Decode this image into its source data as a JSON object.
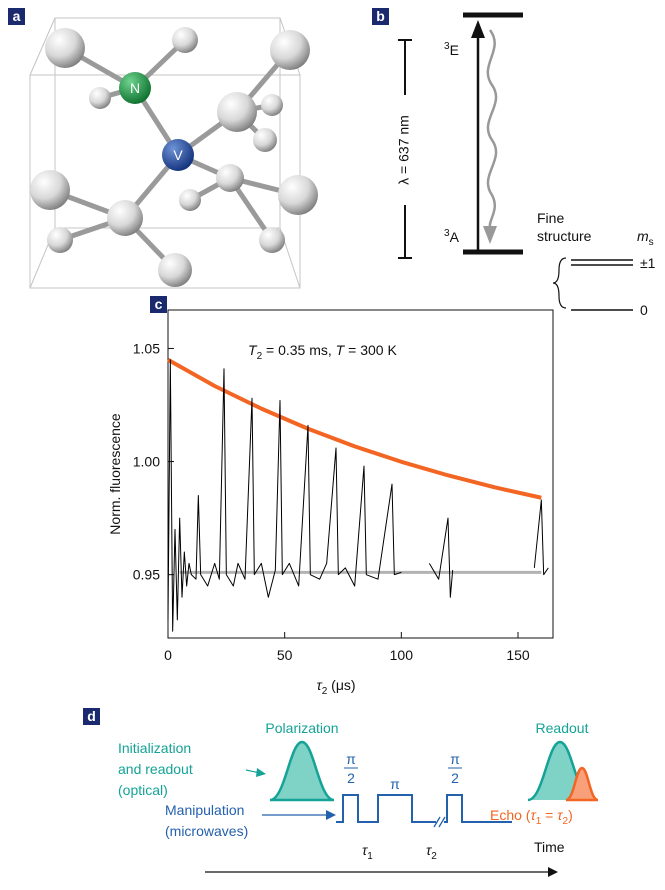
{
  "panel_a": {
    "label": "a",
    "atoms": {
      "nitrogen": "N",
      "vacancy": "V"
    }
  },
  "panel_b": {
    "label": "b",
    "wavelength": "λ = 637 nm",
    "excited": {
      "sup": "3",
      "base": "E"
    },
    "ground": {
      "sup": "3",
      "base": "A"
    },
    "fine_structure": [
      "Fine",
      "structure"
    ],
    "ms": {
      "base": "m",
      "sub": "s"
    },
    "levels": [
      "±1",
      "0"
    ]
  },
  "chart_data": {
    "type": "line",
    "panel_label": "c",
    "annotation": {
      "t2_symbol": "T",
      "t2_sub": "2",
      "t2_value": " = 0.35 ms, ",
      "t_symbol": "T",
      "t_value": " = 300 K"
    },
    "xlabel": {
      "symbol": "τ",
      "sub": "2",
      "unit": " (μs)"
    },
    "ylabel": "Norm. fluorescence",
    "xlim": [
      0,
      165
    ],
    "ylim": [
      0.922,
      1.067
    ],
    "xticks": [
      0,
      50,
      100,
      150
    ],
    "yticks": [
      0.95,
      {
        "value": 1,
        "label": "1.00"
      },
      1.05
    ],
    "series": [
      {
        "color": "#000000",
        "x": [
          0,
          1,
          2,
          3,
          4,
          5,
          6,
          7,
          8,
          9,
          10,
          12,
          13,
          14,
          17,
          20,
          22,
          24,
          25,
          28,
          30,
          33,
          36,
          37,
          40,
          43,
          46,
          48,
          49,
          52,
          56,
          60,
          61,
          65,
          68,
          72,
          73,
          76,
          80,
          84,
          85,
          90,
          96,
          97,
          100,
          105,
          112,
          116,
          120,
          121,
          122,
          140,
          157,
          160,
          161,
          163
        ],
        "values": [
          0.93,
          1.045,
          0.925,
          0.97,
          0.93,
          0.975,
          0.94,
          0.96,
          0.945,
          0.955,
          0.95,
          0.948,
          0.985,
          0.95,
          0.945,
          0.955,
          0.948,
          1.041,
          0.95,
          0.945,
          0.955,
          0.948,
          1.028,
          0.95,
          0.955,
          0.94,
          0.952,
          1.027,
          0.95,
          0.955,
          0.945,
          1.016,
          0.95,
          0.948,
          0.955,
          1.006,
          0.95,
          0.953,
          0.945,
          0.998,
          0.95,
          0.948,
          0.99,
          0.95,
          0.951,
          null,
          0.955,
          0.948,
          0.975,
          0.94,
          0.952,
          null,
          0.953,
          0.983,
          0.95,
          0.953
        ]
      },
      {
        "color": "#f26522",
        "x": [
          0,
          20,
          40,
          60,
          80,
          100,
          120,
          140,
          160
        ],
        "values": [
          1.045,
          1.0334,
          1.0234,
          1.0145,
          1.0067,
          0.9999,
          0.9939,
          0.9886,
          0.984
        ]
      },
      {
        "color": "#b3b3b3",
        "x": [
          5,
          160
        ],
        "values": [
          0.951,
          0.951
        ]
      }
    ]
  },
  "panel_d": {
    "label": "d",
    "polarization": "Polarization",
    "readout": "Readout",
    "optical": [
      "Initialization",
      "and readout",
      "(optical)"
    ],
    "microwave": [
      "Manipulation",
      "(microwaves)"
    ],
    "pulses": [
      {
        "num": "π",
        "den": "2"
      },
      {
        "num": "π"
      },
      {
        "num": "π",
        "den": "2"
      }
    ],
    "tau1": {
      "symbol": "τ",
      "sub": "1"
    },
    "tau2": {
      "symbol": "τ",
      "sub": "2"
    },
    "echo": {
      "text": "Echo (",
      "s1": "τ",
      "sub1": "1",
      "eq": " = ",
      "s2": "τ",
      "sub2": "2",
      "close": ")"
    },
    "time": "Time"
  }
}
